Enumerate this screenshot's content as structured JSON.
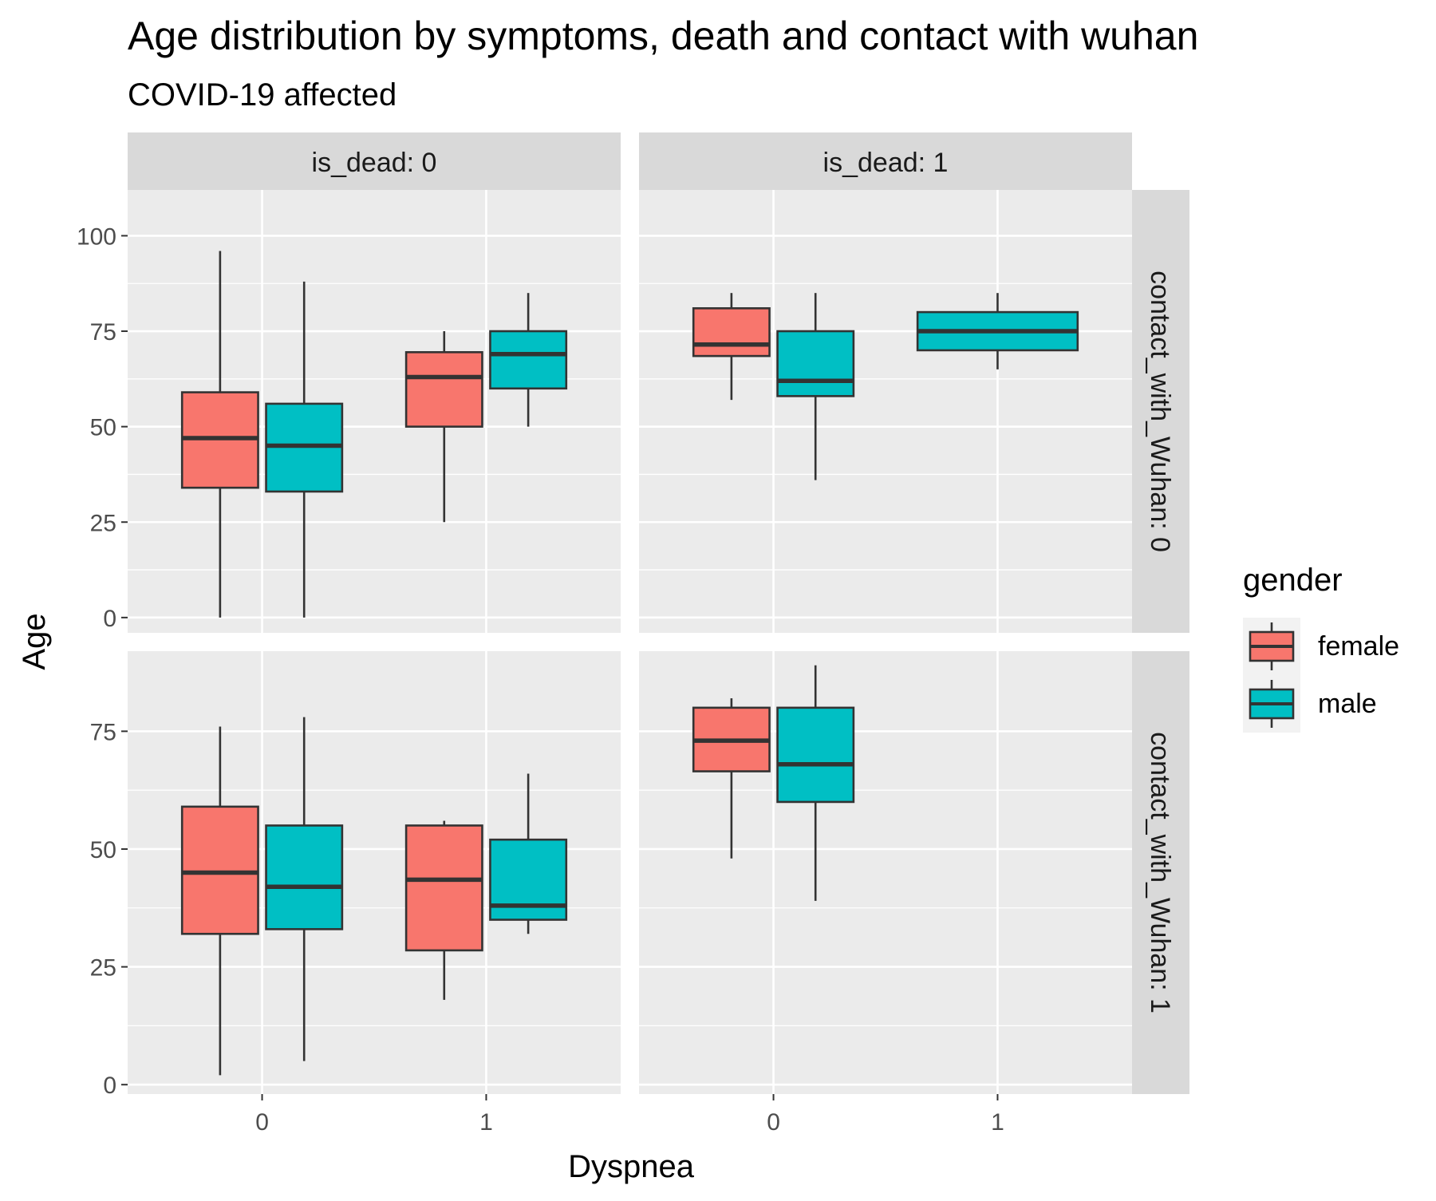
{
  "chart_data": {
    "type": "box",
    "title": "Age distribution by symptoms, death and contact with wuhan",
    "subtitle": "COVID-19 affected",
    "xlabel": "Dyspnea",
    "ylabel": "Age",
    "x_categories": [
      "0",
      "1"
    ],
    "column_facets": [
      "is_dead: 0",
      "is_dead: 1"
    ],
    "row_facets": [
      "contact_with_Wuhan: 0",
      "contact_with_Wuhan: 1"
    ],
    "legend": {
      "title": "gender",
      "position": "right",
      "entries": [
        {
          "name": "female",
          "color": "#F8766D"
        },
        {
          "name": "male",
          "color": "#00BFC4"
        }
      ]
    },
    "row_axes": [
      {
        "ylim": [
          -4,
          112
        ],
        "ticks": [
          0,
          25,
          50,
          75,
          100
        ],
        "tick_labels": [
          "0",
          "25",
          "50",
          "75",
          "100"
        ]
      },
      {
        "ylim": [
          -2,
          92
        ],
        "ticks": [
          0,
          25,
          50,
          75
        ],
        "tick_labels": [
          "0",
          "25",
          "50",
          "75"
        ]
      }
    ],
    "panels": [
      {
        "row": 0,
        "col": 0,
        "boxes": [
          {
            "x": "0",
            "group": "female",
            "min": 0,
            "q1": 34,
            "median": 47,
            "q3": 59,
            "max": 96
          },
          {
            "x": "0",
            "group": "male",
            "min": 0,
            "q1": 33,
            "median": 45,
            "q3": 56,
            "max": 88
          },
          {
            "x": "1",
            "group": "female",
            "min": 25,
            "q1": 50,
            "median": 63,
            "q3": 69.5,
            "max": 75
          },
          {
            "x": "1",
            "group": "male",
            "min": 50,
            "q1": 60,
            "median": 69,
            "q3": 75,
            "max": 85
          }
        ]
      },
      {
        "row": 0,
        "col": 1,
        "boxes": [
          {
            "x": "0",
            "group": "female",
            "min": 57,
            "q1": 68.5,
            "median": 71.5,
            "q3": 81,
            "max": 85
          },
          {
            "x": "0",
            "group": "male",
            "min": 36,
            "q1": 58,
            "median": 62,
            "q3": 75,
            "max": 85
          },
          {
            "x": "1",
            "group": "male",
            "full_width": true,
            "min": 65,
            "q1": 70,
            "median": 75,
            "q3": 80,
            "max": 85
          }
        ]
      },
      {
        "row": 1,
        "col": 0,
        "boxes": [
          {
            "x": "0",
            "group": "female",
            "min": 2,
            "q1": 32,
            "median": 45,
            "q3": 59,
            "max": 76
          },
          {
            "x": "0",
            "group": "male",
            "min": 5,
            "q1": 33,
            "median": 42,
            "q3": 55,
            "max": 78
          },
          {
            "x": "1",
            "group": "female",
            "min": 18,
            "q1": 28.5,
            "median": 43.5,
            "q3": 55,
            "max": 56
          },
          {
            "x": "1",
            "group": "male",
            "min": 32,
            "q1": 35,
            "median": 38,
            "q3": 52,
            "max": 66
          }
        ]
      },
      {
        "row": 1,
        "col": 1,
        "boxes": [
          {
            "x": "0",
            "group": "female",
            "min": 48,
            "q1": 66.5,
            "median": 73,
            "q3": 80,
            "max": 82
          },
          {
            "x": "0",
            "group": "male",
            "min": 39,
            "q1": 60,
            "median": 68,
            "q3": 80,
            "max": 89
          }
        ]
      }
    ]
  }
}
